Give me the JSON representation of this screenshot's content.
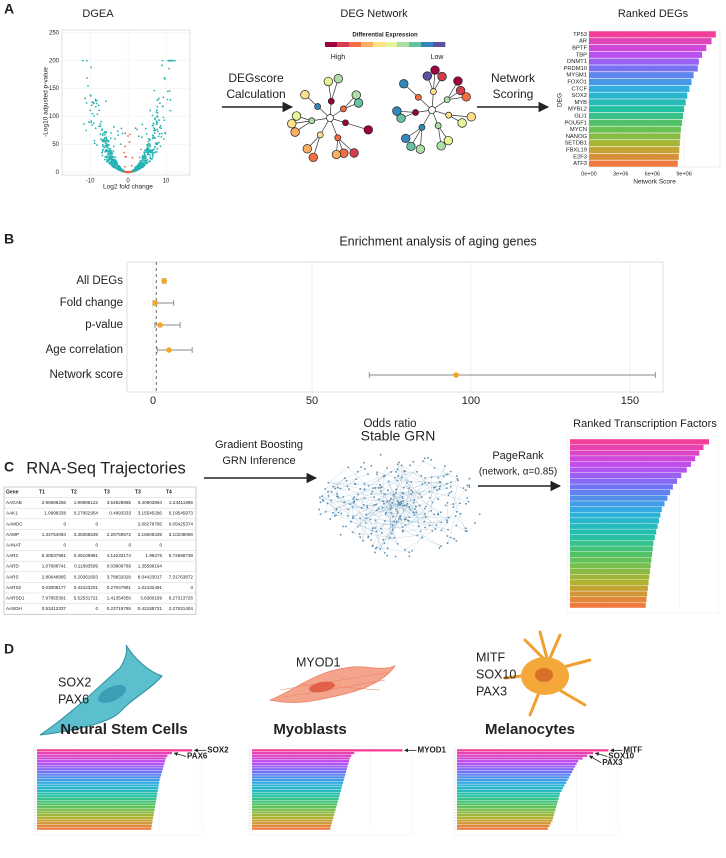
{
  "panels": [
    "A",
    "B",
    "C",
    "D"
  ],
  "volcano": {
    "title": "DGEA",
    "x_label": "Log2 fold change",
    "y_label": "-Log10 adjusted p-value",
    "xlim": [
      -17.4,
      16.3
    ],
    "ylim": [
      -5,
      255
    ],
    "xticks": [
      -10,
      0,
      10
    ],
    "yticks": [
      0,
      50,
      100,
      150,
      200,
      250
    ],
    "color": "#26b3b3",
    "center_color": "#e8604c"
  },
  "step1": [
    "DEGscore",
    "Calculation"
  ],
  "network": {
    "title": "DEG Network",
    "legend_title": "Differential Expression",
    "high": "High",
    "low": "Low",
    "palette": [
      "#9e0142",
      "#d53e4f",
      "#f46d43",
      "#fdae61",
      "#fee08b",
      "#e6f598",
      "#abdda4",
      "#66c2a5",
      "#3288bd",
      "#5e4fa2"
    ]
  },
  "step2": [
    "Network",
    "Scoring"
  ],
  "chart_data": [
    {
      "type": "hbar",
      "title": "Ranked DEGs",
      "x_label": "Network Score",
      "y_label": "DEG",
      "categories": [
        "TP53",
        "AR",
        "BPTF",
        "TBP",
        "DNMT1",
        "PRDM10",
        "MYSM1",
        "FOXO1",
        "CTCF",
        "SOX2",
        "MYB",
        "MYBL2",
        "GLI1",
        "POU5F1",
        "MYCN",
        "NANOG",
        "SETDB1",
        "FBXL19",
        "E2F3",
        "ATF3"
      ],
      "values": [
        12000000,
        11600000,
        11100000,
        10700000,
        10400000,
        10300000,
        9900000,
        9700000,
        9500000,
        9300000,
        9150000,
        9000000,
        8900000,
        8800000,
        8700000,
        8650000,
        8600000,
        8550000,
        8500000,
        8400000
      ],
      "xlim": [
        0,
        12400000
      ],
      "xticks": [
        {
          "value": 0,
          "label": "0e+00"
        },
        {
          "value": 3000000,
          "label": "3e+06"
        },
        {
          "value": 6000000,
          "label": "6e+06"
        },
        {
          "value": 9000000,
          "label": "9e+06"
        }
      ],
      "palette": [
        "#f43f9a",
        "#c14cf0",
        "#6a78f4",
        "#2fb0de",
        "#22c0a8",
        "#5cc35a",
        "#b0b330",
        "#f07a3e"
      ]
    },
    {
      "type": "forest",
      "title": "Enrichment analysis of aging genes",
      "x_label": "Odds ratio",
      "categories": [
        "All DEGs",
        "Fold change",
        "p-value",
        "Age correlation",
        "Network score"
      ],
      "values": [
        3.5,
        0.7,
        2.2,
        5,
        95.3
      ],
      "ci_low": [
        3,
        0,
        0.6,
        1.3,
        68
      ],
      "ci_high": [
        4,
        6.5,
        8.5,
        12.3,
        158
      ],
      "xlim": [
        -8.2,
        160.4
      ],
      "xticks": [
        0,
        50,
        100,
        150
      ],
      "ref_line": 1,
      "grid": true,
      "color": "#f5a623",
      "bar_color": "#8a8a8a"
    },
    {
      "type": "minibar",
      "title": "Ranked Transcription Factors",
      "values": [
        1,
        0.96,
        0.93,
        0.9,
        0.87,
        0.84,
        0.8,
        0.77,
        0.74,
        0.72,
        0.7,
        0.68,
        0.66,
        0.65,
        0.64,
        0.63,
        0.62,
        0.61,
        0.6,
        0.595,
        0.59,
        0.585,
        0.58,
        0.575,
        0.57,
        0.565,
        0.56,
        0.555,
        0.55,
        0.545
      ],
      "xlim": [
        0,
        1.05
      ],
      "palette": [
        "#f43f9a",
        "#c14cf0",
        "#6a78f4",
        "#2fb0de",
        "#22c0a8",
        "#5cc35a",
        "#b0b330",
        "#f07a3e"
      ]
    },
    {
      "type": "minibar",
      "highlights": [
        "SOX2",
        "PAX6"
      ],
      "values": [
        1,
        0.87,
        0.84,
        0.83,
        0.825,
        0.82,
        0.815,
        0.81,
        0.805,
        0.8,
        0.795,
        0.79,
        0.787,
        0.784,
        0.781,
        0.778,
        0.775,
        0.772,
        0.769,
        0.766,
        0.763,
        0.76,
        0.757,
        0.754,
        0.751,
        0.748,
        0.745,
        0.742,
        0.739,
        0.736
      ],
      "xlim": [
        0,
        1.05
      ],
      "palette": [
        "#f43f9a",
        "#c14cf0",
        "#6a78f4",
        "#2fb0de",
        "#22c0a8",
        "#5cc35a",
        "#b0b330",
        "#f07a3e"
      ]
    },
    {
      "type": "minibar",
      "highlights": [
        "MYOD1"
      ],
      "values": [
        1,
        0.68,
        0.66,
        0.65,
        0.645,
        0.64,
        0.635,
        0.63,
        0.625,
        0.62,
        0.615,
        0.61,
        0.605,
        0.6,
        0.595,
        0.59,
        0.585,
        0.58,
        0.575,
        0.57,
        0.565,
        0.56,
        0.555,
        0.55,
        0.545,
        0.54,
        0.535,
        0.53,
        0.525,
        0.52
      ],
      "xlim": [
        0,
        1.05
      ],
      "palette": [
        "#f43f9a",
        "#c14cf0",
        "#6a78f4",
        "#2fb0de",
        "#22c0a8",
        "#5cc35a",
        "#b0b330",
        "#f07a3e"
      ]
    },
    {
      "type": "minibar",
      "highlights": [
        "MITF",
        "SOX10",
        "PAX3"
      ],
      "values": [
        1,
        0.9,
        0.86,
        0.83,
        0.8,
        0.79,
        0.78,
        0.77,
        0.76,
        0.75,
        0.74,
        0.73,
        0.72,
        0.71,
        0.7,
        0.69,
        0.68,
        0.675,
        0.67,
        0.665,
        0.66,
        0.655,
        0.65,
        0.645,
        0.64,
        0.635,
        0.63,
        0.62,
        0.61,
        0.6
      ],
      "xlim": [
        0,
        1.05
      ],
      "palette": [
        "#f43f9a",
        "#c14cf0",
        "#6a78f4",
        "#2fb0de",
        "#22c0a8",
        "#5cc35a",
        "#b0b330",
        "#f07a3e"
      ]
    }
  ],
  "panel_c": {
    "trajectories_title": "RNA-Seq Trajectories",
    "table": {
      "header": [
        "Gene",
        "T1",
        "T2",
        "T3",
        "T3",
        "T4"
      ],
      "rows": [
        [
          "AAGAB",
          2.99586256,
          1.90895122,
          3.54828865,
          0.40903894,
          2.24411985
        ],
        [
          "AAK1",
          1.0998338,
          0.27952954,
          0.4893333,
          3.15545296,
          0.19545973
        ],
        [
          "AAMDC",
          0,
          0,
          null,
          2.08279795,
          0.05425374
        ],
        [
          "AAMP",
          1.34754094,
          3.38355639,
          2.26759572,
          2.16605339,
          3.10238099
        ],
        [
          "AANAT",
          0,
          0,
          0,
          0,
          null
        ],
        [
          "AAR2",
          5.30537961,
          0.35109981,
          4.14233174,
          1.96276,
          5.72699738
        ],
        [
          "AARD",
          1.07688741,
          0.11893509,
          0.03909769,
          1.35599164,
          null
        ],
        [
          "AARS",
          2.80648905,
          0.20361603,
          3.78832029,
          8.04423017,
          7.31763872
        ],
        [
          "AARS2",
          0.03008177,
          0.42423201,
          0.27047991,
          1.02432491,
          0
        ],
        [
          "AARSD1",
          7.97855301,
          5.52531721,
          1.41354556,
          3.6380159,
          6.27313726
        ],
        [
          "AASDH",
          0.53412337,
          0,
          0.22719765,
          0.42185721,
          2.27531404
        ]
      ]
    },
    "step1": [
      "Gradient Boosting",
      "GRN Inference"
    ],
    "network_title": "Stable GRN",
    "step2": [
      "PageRank",
      "(network, α=0.85)"
    ],
    "network_color": "#5b8fb3"
  },
  "panel_d": {
    "cells": [
      {
        "markers": [
          "SOX2",
          "PAX6"
        ],
        "name": "Neural Stem Cells"
      },
      {
        "markers": [
          "MYOD1"
        ],
        "name": "Myoblasts"
      },
      {
        "markers": [
          "MITF",
          "SOX10",
          "PAX3"
        ],
        "name": "Melanocytes"
      }
    ]
  }
}
